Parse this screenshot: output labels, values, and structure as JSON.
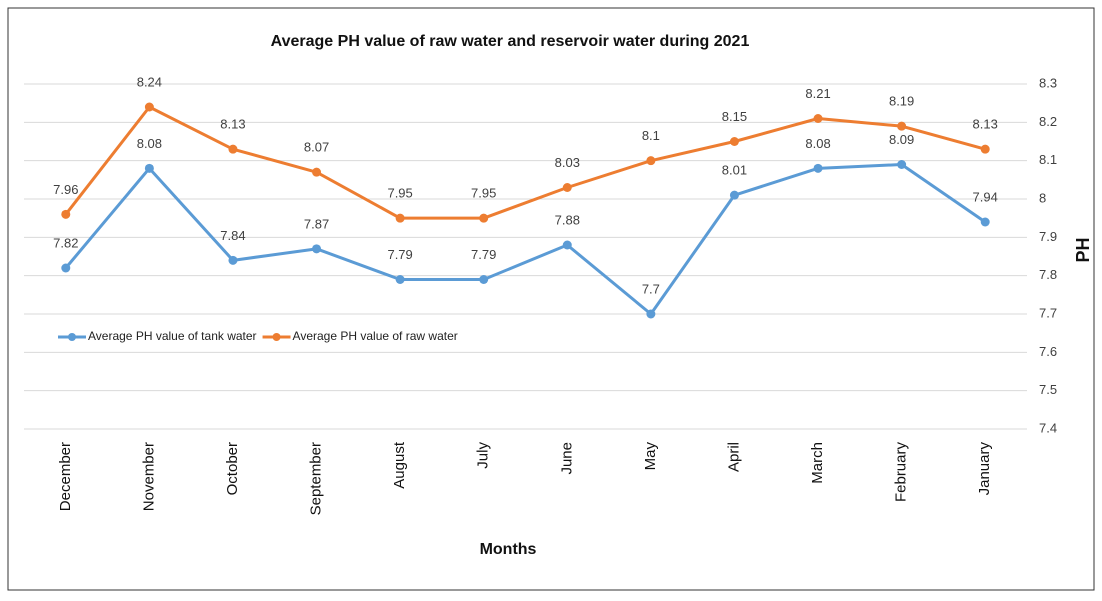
{
  "chart_data": {
    "type": "line",
    "title": "Average PH value of raw water and reservoir water during 2021",
    "x_label": "Months",
    "y_label": "PH",
    "categories": [
      "December",
      "November",
      "October",
      "September",
      "August",
      "July",
      "June",
      "May",
      "April",
      "March",
      "February",
      "January"
    ],
    "series": [
      {
        "name": "Average PH value of tank water",
        "color": "#5b9bd5",
        "values": [
          7.82,
          8.08,
          7.84,
          7.87,
          7.79,
          7.79,
          7.88,
          7.7,
          8.01,
          8.08,
          8.09,
          7.94
        ]
      },
      {
        "name": "Average PH value of raw water",
        "color": "#ed7d31",
        "values": [
          7.96,
          8.24,
          8.13,
          8.07,
          7.95,
          7.95,
          8.03,
          8.1,
          8.15,
          8.21,
          8.19,
          8.13
        ]
      }
    ],
    "ylim": [
      7.4,
      8.3
    ],
    "yticks": [
      7.4,
      7.5,
      7.6,
      7.7,
      7.8,
      7.9,
      8,
      8.1,
      8.2,
      8.3
    ],
    "grid": true,
    "legend": "left"
  }
}
